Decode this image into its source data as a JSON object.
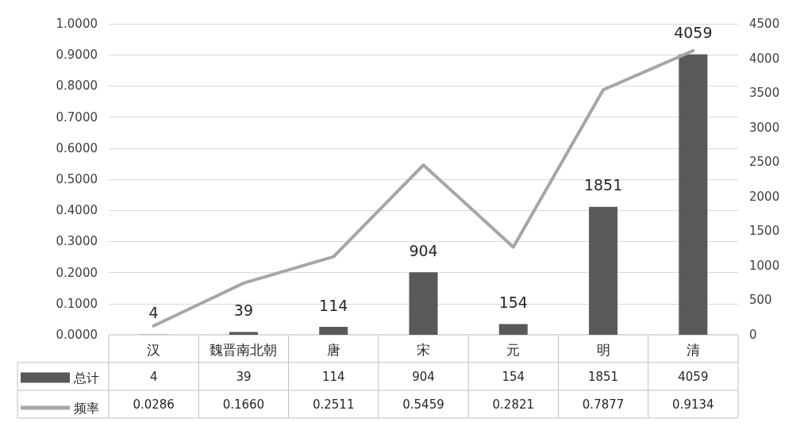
{
  "chart_data": {
    "type": "bar",
    "categories": [
      "汉",
      "魏晋南北朝",
      "唐",
      "宋",
      "元",
      "明",
      "清"
    ],
    "series": [
      {
        "name": "总计",
        "axis": "y2",
        "color": "#595959",
        "values": [
          4,
          39,
          114,
          904,
          154,
          1851,
          4059
        ],
        "value_labels": [
          "4",
          "39",
          "114",
          "904",
          "154",
          "1851",
          "4059"
        ]
      },
      {
        "name": "频率",
        "type": "line",
        "color": "#a6a6a6",
        "values": [
          0.0286,
          0.166,
          0.2511,
          0.5459,
          0.2821,
          0.7877,
          0.9134
        ],
        "value_labels": [
          "0.0286",
          "0.1660",
          "0.2511",
          "0.5459",
          "0.2821",
          "0.7877",
          "0.9134"
        ]
      }
    ],
    "ylim": [
      0,
      1
    ],
    "yticks": [
      {
        "value": 0,
        "label": "0.0000"
      },
      {
        "value": 0.1,
        "label": "0.1000"
      },
      {
        "value": 0.2,
        "label": "0.2000"
      },
      {
        "value": 0.3,
        "label": "0.3000"
      },
      {
        "value": 0.4,
        "label": "0.4000"
      },
      {
        "value": 0.5,
        "label": "0.5000"
      },
      {
        "value": 0.6,
        "label": "0.6000"
      },
      {
        "value": 0.7,
        "label": "0.7000"
      },
      {
        "value": 0.8,
        "label": "0.8000"
      },
      {
        "value": 0.9,
        "label": "0.9000"
      },
      {
        "value": 1,
        "label": "1.0000"
      }
    ],
    "y2lim": [
      0,
      4500
    ],
    "y2ticks": [
      0,
      500,
      1000,
      1500,
      2000,
      2500,
      3000,
      3500,
      4000,
      4500
    ],
    "grid": "y",
    "legend": "bottom left",
    "marker": "none",
    "line_style": "solid"
  }
}
